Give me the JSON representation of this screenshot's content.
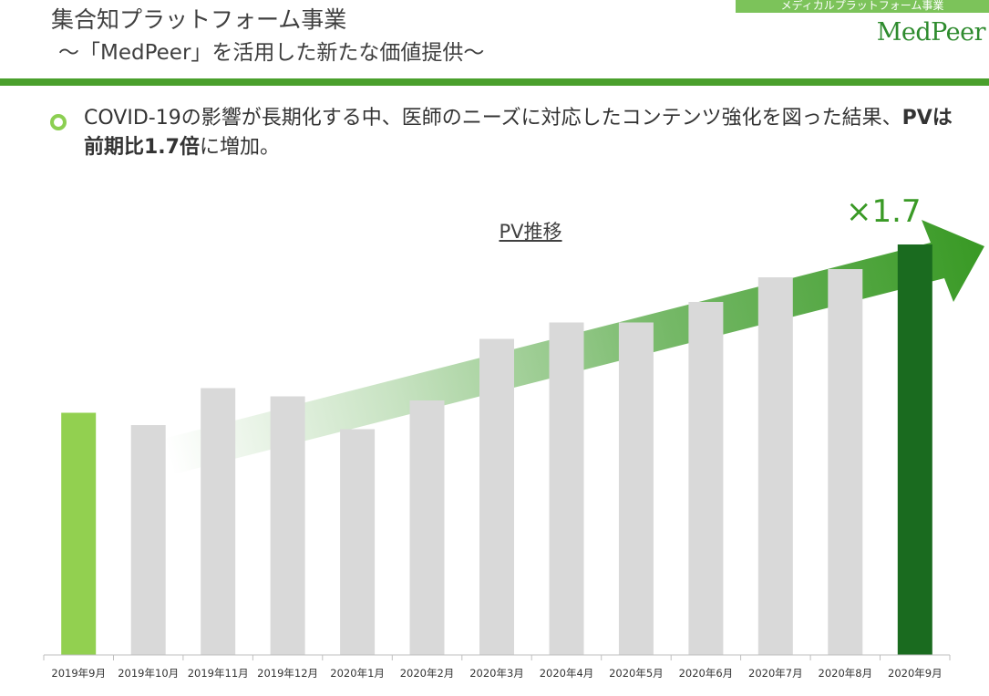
{
  "header": {
    "tag": "メディカルプラットフォーム事業",
    "title": "集合知プラットフォーム事業",
    "subtitle": "～「MedPeer」を活用した新たな価値提供～",
    "logo": "MedPeer"
  },
  "bullet": {
    "text_pre": "COVID-19の影響が長期化する中、医師のニーズに対応したコンテンツ強化を図った結果、",
    "text_bold": "PVは前期比1.7倍",
    "text_post": "に増加。"
  },
  "multiplier_label": "×1.7",
  "colors": {
    "accent": "#4aa02c",
    "first_bar": "#92d050",
    "last_bar": "#1a6b1f",
    "other_bars": "#d9d9d9",
    "arrow": "#3a9a26"
  },
  "chart_data": {
    "type": "bar",
    "title": "PV推移",
    "categories": [
      "2019年9月",
      "2019年10月",
      "2019年11月",
      "2019年12月",
      "2020年1月",
      "2020年2月",
      "2020年3月",
      "2020年4月",
      "2020年5月",
      "2020年6月",
      "2020年7月",
      "2020年8月",
      "2020年9月"
    ],
    "values": [
      0.59,
      0.56,
      0.65,
      0.63,
      0.55,
      0.62,
      0.77,
      0.81,
      0.81,
      0.86,
      0.92,
      0.94,
      1.0
    ],
    "value_unit": "relative PV (2020年9月 = 1.0)",
    "ylim": [
      0,
      1.0
    ],
    "grid": false,
    "legend": "none"
  }
}
